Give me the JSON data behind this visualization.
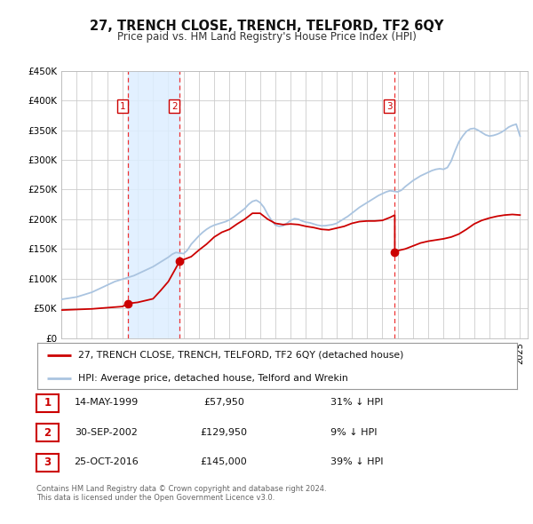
{
  "title": "27, TRENCH CLOSE, TRENCH, TELFORD, TF2 6QY",
  "subtitle": "Price paid vs. HM Land Registry's House Price Index (HPI)",
  "ylim": [
    0,
    450000
  ],
  "xlim_start": 1995.0,
  "xlim_end": 2025.5,
  "yticks": [
    0,
    50000,
    100000,
    150000,
    200000,
    250000,
    300000,
    350000,
    400000,
    450000
  ],
  "ytick_labels": [
    "£0",
    "£50K",
    "£100K",
    "£150K",
    "£200K",
    "£250K",
    "£300K",
    "£350K",
    "£400K",
    "£450K"
  ],
  "xticks": [
    1995,
    1996,
    1997,
    1998,
    1999,
    2000,
    2001,
    2002,
    2003,
    2004,
    2005,
    2006,
    2007,
    2008,
    2009,
    2010,
    2011,
    2012,
    2013,
    2014,
    2015,
    2016,
    2017,
    2018,
    2019,
    2020,
    2021,
    2022,
    2023,
    2024,
    2025
  ],
  "background_color": "#ffffff",
  "plot_bg_color": "#ffffff",
  "grid_color": "#cccccc",
  "hpi_line_color": "#aac4e0",
  "price_line_color": "#cc0000",
  "sale_marker_color": "#cc0000",
  "vline_color": "#ee3333",
  "shade_color": "#ddeeff",
  "transaction_dates": [
    1999.37,
    2002.75,
    2016.81
  ],
  "transaction_prices": [
    57950,
    129950,
    145000
  ],
  "transaction_labels": [
    "1",
    "2",
    "3"
  ],
  "legend_entries": [
    "27, TRENCH CLOSE, TRENCH, TELFORD, TF2 6QY (detached house)",
    "HPI: Average price, detached house, Telford and Wrekin"
  ],
  "table_rows": [
    [
      "1",
      "14-MAY-1999",
      "£57,950",
      "31% ↓ HPI"
    ],
    [
      "2",
      "30-SEP-2002",
      "£129,950",
      "9% ↓ HPI"
    ],
    [
      "3",
      "25-OCT-2016",
      "£145,000",
      "39% ↓ HPI"
    ]
  ],
  "footnote1": "Contains HM Land Registry data © Crown copyright and database right 2024.",
  "footnote2": "This data is licensed under the Open Government Licence v3.0.",
  "hpi_data_x": [
    1995.0,
    1995.25,
    1995.5,
    1995.75,
    1996.0,
    1996.25,
    1996.5,
    1996.75,
    1997.0,
    1997.25,
    1997.5,
    1997.75,
    1998.0,
    1998.25,
    1998.5,
    1998.75,
    1999.0,
    1999.25,
    1999.5,
    1999.75,
    2000.0,
    2000.25,
    2000.5,
    2000.75,
    2001.0,
    2001.25,
    2001.5,
    2001.75,
    2002.0,
    2002.25,
    2002.5,
    2002.75,
    2003.0,
    2003.25,
    2003.5,
    2003.75,
    2004.0,
    2004.25,
    2004.5,
    2004.75,
    2005.0,
    2005.25,
    2005.5,
    2005.75,
    2006.0,
    2006.25,
    2006.5,
    2006.75,
    2007.0,
    2007.25,
    2007.5,
    2007.75,
    2008.0,
    2008.25,
    2008.5,
    2008.75,
    2009.0,
    2009.25,
    2009.5,
    2009.75,
    2010.0,
    2010.25,
    2010.5,
    2010.75,
    2011.0,
    2011.25,
    2011.5,
    2011.75,
    2012.0,
    2012.25,
    2012.5,
    2012.75,
    2013.0,
    2013.25,
    2013.5,
    2013.75,
    2014.0,
    2014.25,
    2014.5,
    2014.75,
    2015.0,
    2015.25,
    2015.5,
    2015.75,
    2016.0,
    2016.25,
    2016.5,
    2016.75,
    2017.0,
    2017.25,
    2017.5,
    2017.75,
    2018.0,
    2018.25,
    2018.5,
    2018.75,
    2019.0,
    2019.25,
    2019.5,
    2019.75,
    2020.0,
    2020.25,
    2020.5,
    2020.75,
    2021.0,
    2021.25,
    2021.5,
    2021.75,
    2022.0,
    2022.25,
    2022.5,
    2022.75,
    2023.0,
    2023.25,
    2023.5,
    2023.75,
    2024.0,
    2024.25,
    2024.5,
    2024.75,
    2025.0
  ],
  "hpi_data_y": [
    65000,
    66000,
    67000,
    68000,
    69000,
    71000,
    73000,
    75000,
    77000,
    80000,
    83000,
    86000,
    89000,
    92000,
    95000,
    97000,
    99000,
    101000,
    103000,
    105000,
    108000,
    111000,
    114000,
    117000,
    120000,
    124000,
    128000,
    132000,
    136000,
    141000,
    144000,
    143000,
    142000,
    148000,
    158000,
    165000,
    172000,
    178000,
    183000,
    187000,
    190000,
    192000,
    194000,
    196000,
    199000,
    203000,
    208000,
    213000,
    218000,
    225000,
    230000,
    232000,
    228000,
    220000,
    208000,
    198000,
    190000,
    188000,
    189000,
    193000,
    198000,
    201000,
    200000,
    197000,
    195000,
    194000,
    192000,
    190000,
    189000,
    189000,
    190000,
    191000,
    193000,
    197000,
    201000,
    205000,
    210000,
    215000,
    220000,
    224000,
    228000,
    232000,
    236000,
    240000,
    243000,
    246000,
    248000,
    247000,
    246000,
    249000,
    255000,
    260000,
    265000,
    269000,
    273000,
    276000,
    279000,
    282000,
    284000,
    285000,
    284000,
    287000,
    298000,
    315000,
    330000,
    340000,
    348000,
    352000,
    353000,
    350000,
    346000,
    342000,
    340000,
    341000,
    343000,
    346000,
    350000,
    355000,
    358000,
    360000,
    340000
  ],
  "price_line_smooth_x": [
    1995.0,
    1995.5,
    1996.0,
    1996.5,
    1997.0,
    1997.5,
    1998.0,
    1998.5,
    1999.0,
    1999.37,
    1999.371,
    1999.5,
    2000.0,
    2000.5,
    2001.0,
    2001.5,
    2002.0,
    2002.5,
    2002.749,
    2002.75,
    2002.751,
    2003.0,
    2003.5,
    2004.0,
    2004.5,
    2005.0,
    2005.5,
    2006.0,
    2006.5,
    2007.0,
    2007.5,
    2008.0,
    2008.5,
    2009.0,
    2009.5,
    2010.0,
    2010.5,
    2011.0,
    2011.5,
    2012.0,
    2012.5,
    2013.0,
    2013.5,
    2014.0,
    2014.5,
    2015.0,
    2015.5,
    2016.0,
    2016.5,
    2016.809,
    2016.81,
    2016.811,
    2017.0,
    2017.5,
    2018.0,
    2018.5,
    2019.0,
    2019.5,
    2020.0,
    2020.5,
    2021.0,
    2021.5,
    2022.0,
    2022.5,
    2023.0,
    2023.5,
    2024.0,
    2024.5,
    2025.0
  ],
  "price_line_smooth_y": [
    47000,
    47500,
    48000,
    48500,
    49000,
    50000,
    51000,
    52000,
    53000,
    57950,
    57950,
    58500,
    60000,
    63000,
    66000,
    80000,
    95000,
    118000,
    129950,
    129950,
    129950,
    132000,
    137000,
    148000,
    158000,
    170000,
    178000,
    183000,
    192000,
    200000,
    210000,
    210000,
    200000,
    193000,
    191000,
    192000,
    191000,
    188000,
    186000,
    183000,
    182000,
    185000,
    188000,
    193000,
    196000,
    197000,
    197000,
    198000,
    203000,
    207000,
    145000,
    145000,
    147000,
    150000,
    155000,
    160000,
    163000,
    165000,
    167000,
    170000,
    175000,
    183000,
    192000,
    198000,
    202000,
    205000,
    207000,
    208000,
    207000
  ]
}
